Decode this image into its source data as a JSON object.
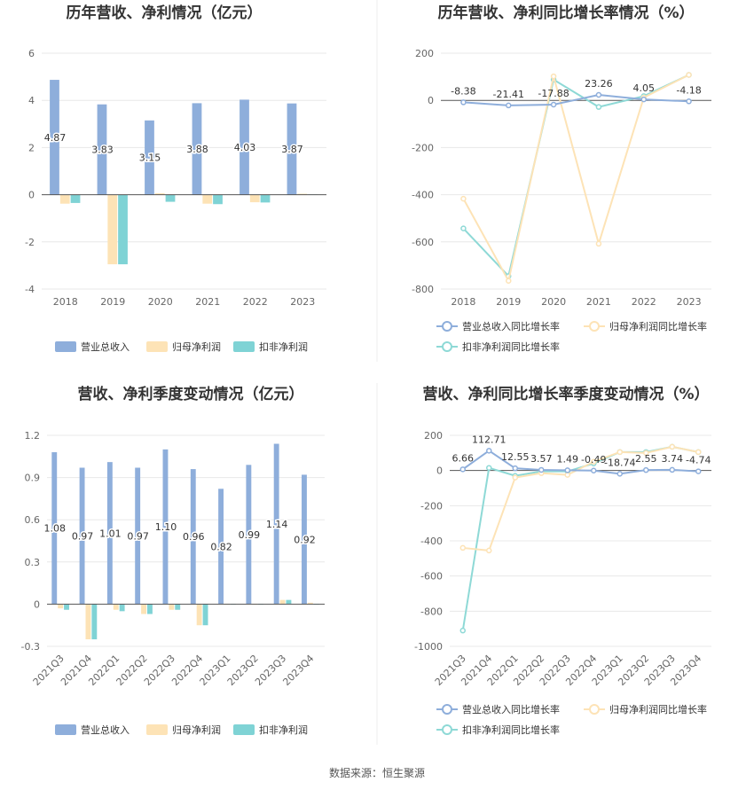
{
  "footer": {
    "source": "数据来源：恒生聚源"
  },
  "colors": {
    "revenue": "#8EAEDB",
    "parent_profit": "#FDE3B6",
    "deducted_profit": "#7FD3D5",
    "grid": "#E8E8E8",
    "axis": "#555555"
  },
  "chart_data": [
    {
      "type": "bar",
      "title": "历年营收、净利情况（亿元）",
      "categories": [
        "2018",
        "2019",
        "2020",
        "2021",
        "2022",
        "2023"
      ],
      "ylim": [
        -4,
        6
      ],
      "yticks": [
        -4,
        -2,
        0,
        2,
        4,
        6
      ],
      "grid": true,
      "legend": "bottom",
      "series": [
        {
          "name": "营业总收入",
          "values": [
            4.87,
            3.83,
            3.15,
            3.88,
            4.03,
            3.87
          ],
          "labels": [
            "4.87",
            "3.83",
            "3.15",
            "3.88",
            "4.03",
            "3.87"
          ]
        },
        {
          "name": "归母净利润",
          "values": [
            -0.38,
            -2.95,
            0.06,
            -0.38,
            -0.32,
            0.04
          ]
        },
        {
          "name": "扣非净利润",
          "values": [
            -0.35,
            -2.95,
            -0.3,
            -0.4,
            -0.33,
            0.01
          ]
        }
      ]
    },
    {
      "type": "line",
      "title": "历年营收、净利同比增长率情况（%）",
      "categories": [
        "2018",
        "2019",
        "2020",
        "2021",
        "2022",
        "2023"
      ],
      "ylim": [
        -800,
        200
      ],
      "yticks": [
        -800,
        -600,
        -400,
        -200,
        0,
        200
      ],
      "grid": true,
      "legend": "bottom",
      "series": [
        {
          "name": "营业总收入同比增长率",
          "values": [
            -8.38,
            -21.41,
            -17.88,
            23.26,
            4.05,
            -4.18
          ],
          "labels": [
            "-8.38",
            "-21.41",
            "-17.88",
            "23.26",
            "4.05",
            "-4.18"
          ]
        },
        {
          "name": "归母净利润同比增长率",
          "values": [
            -417,
            -765,
            102,
            -608,
            12,
            108
          ]
        },
        {
          "name": "扣非净利润同比增长率",
          "values": [
            -543,
            -745,
            88,
            -28,
            18,
            108
          ]
        }
      ]
    },
    {
      "type": "bar",
      "title": "营收、净利季度变动情况（亿元）",
      "categories": [
        "2021Q3",
        "2021Q4",
        "2022Q1",
        "2022Q2",
        "2022Q3",
        "2022Q4",
        "2023Q1",
        "2023Q2",
        "2023Q3",
        "2023Q4"
      ],
      "ylim": [
        -0.3,
        1.2
      ],
      "yticks": [
        -0.3,
        0,
        0.3,
        0.6,
        0.9,
        1.2
      ],
      "grid": true,
      "legend": "bottom",
      "series": [
        {
          "name": "营业总收入",
          "values": [
            1.08,
            0.97,
            1.01,
            0.97,
            1.1,
            0.96,
            0.82,
            0.99,
            1.14,
            0.92
          ],
          "labels": [
            "1.08",
            "0.97",
            "1.01",
            "0.97",
            "1.10",
            "0.96",
            "0.82",
            "0.99",
            "1.14",
            "0.92"
          ]
        },
        {
          "name": "归母净利润",
          "values": [
            -0.03,
            -0.25,
            -0.04,
            -0.07,
            -0.04,
            -0.15,
            0.0,
            0.0,
            0.03,
            0.01
          ]
        },
        {
          "name": "扣非净利润",
          "values": [
            -0.04,
            -0.25,
            -0.05,
            -0.07,
            -0.04,
            -0.15,
            0.0,
            0.0,
            0.03,
            0.0
          ]
        }
      ]
    },
    {
      "type": "line",
      "title": "营收、净利同比增长率季度变动情况（%）",
      "categories": [
        "2021Q3",
        "2021Q4",
        "2022Q1",
        "2022Q2",
        "2022Q3",
        "2022Q4",
        "2023Q1",
        "2023Q2",
        "2023Q3",
        "2023Q4"
      ],
      "ylim": [
        -1000,
        200
      ],
      "yticks": [
        -1000,
        -800,
        -600,
        -400,
        -200,
        0,
        200
      ],
      "grid": true,
      "legend": "bottom",
      "series": [
        {
          "name": "营业总收入同比增长率",
          "values": [
            6.66,
            112.71,
            12.55,
            3.57,
            1.49,
            -0.49,
            -18.74,
            2.55,
            3.74,
            -4.74
          ],
          "labels": [
            "6.66",
            "112.71",
            "12.55",
            "3.57",
            "1.49",
            "-0.49",
            "-18.74",
            "2.55",
            "3.74",
            "-4.74"
          ]
        },
        {
          "name": "归母净利润同比增长率",
          "values": [
            -440,
            -455,
            -40,
            -15,
            -25,
            50,
            105,
            100,
            135,
            105
          ]
        },
        {
          "name": "扣非净利润同比增长率",
          "values": [
            -910,
            15,
            -30,
            -5,
            -5,
            40,
            105,
            105,
            135,
            105
          ]
        }
      ]
    }
  ]
}
